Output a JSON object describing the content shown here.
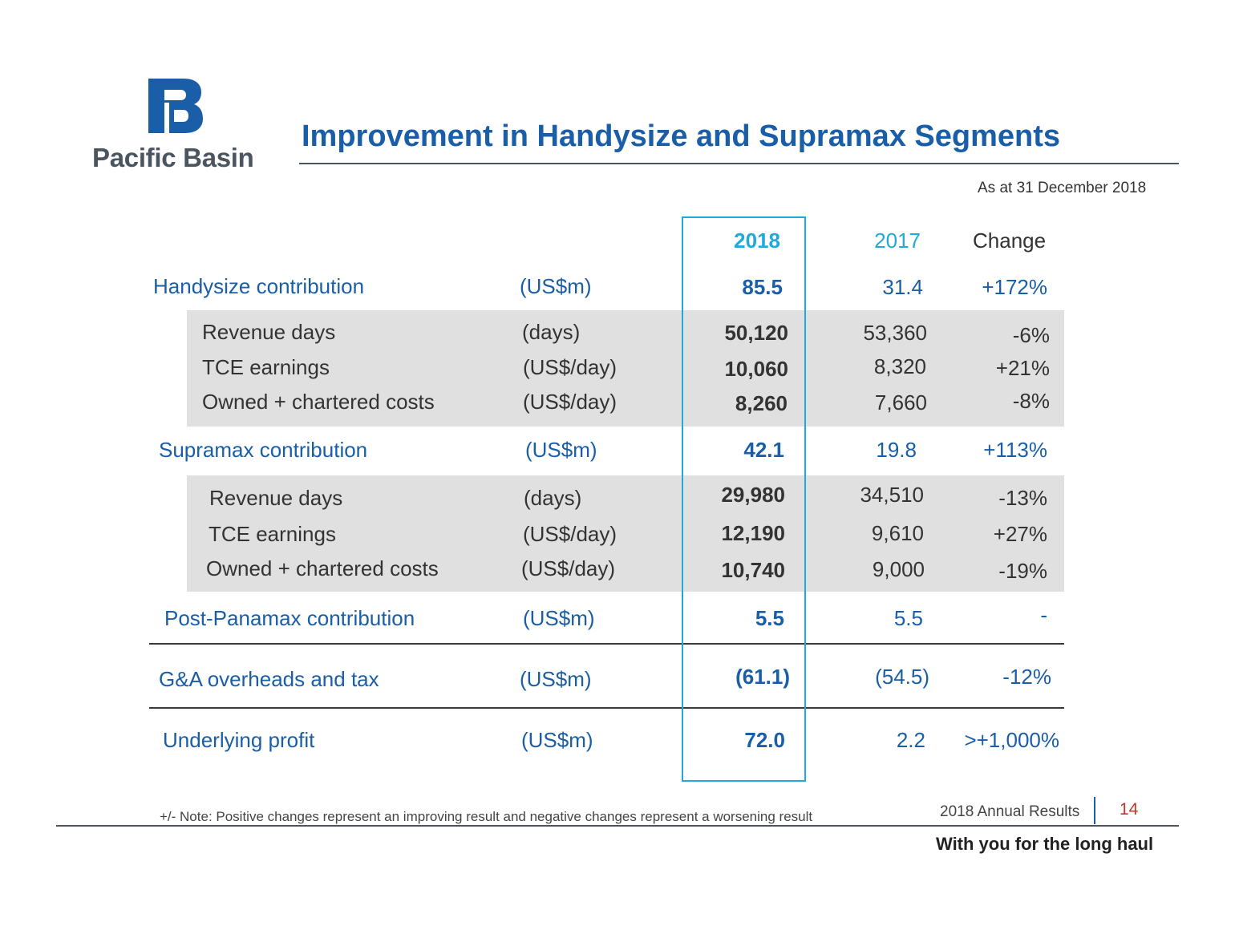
{
  "brand": {
    "name": "Pacific Basin",
    "color": "#1a5ea8"
  },
  "title": "Improvement in Handysize and Supramax Segments",
  "as_at": "As at 31 December 2018",
  "columns": {
    "y2018": "2018",
    "y2017": "2017",
    "change": "Change"
  },
  "rows": {
    "handy": {
      "label": "Handysize contribution",
      "unit": "(US$m)",
      "v2018": "85.5",
      "v2017": "31.4",
      "change": "+172%"
    },
    "handy_rev": {
      "label": "Revenue days",
      "unit": "(days)",
      "v2018": "50,120",
      "v2017": "53,360",
      "change": "-6%"
    },
    "handy_tce": {
      "label": "TCE earnings",
      "unit": "(US$/day)",
      "v2018": "10,060",
      "v2017": "8,320",
      "change": "+21%"
    },
    "handy_cost": {
      "label": "Owned + chartered costs",
      "unit": "(US$/day)",
      "v2018": "8,260",
      "v2017": "7,660",
      "change": "-8%"
    },
    "supra": {
      "label": "Supramax contribution",
      "unit": "(US$m)",
      "v2018": "42.1",
      "v2017": "19.8",
      "change": "+113%"
    },
    "supra_rev": {
      "label": "Revenue days",
      "unit": "(days)",
      "v2018": "29,980",
      "v2017": "34,510",
      "change": "-13%"
    },
    "supra_tce": {
      "label": "TCE earnings",
      "unit": "(US$/day)",
      "v2018": "12,190",
      "v2017": "9,610",
      "change": "+27%"
    },
    "supra_cost": {
      "label": "Owned + chartered costs",
      "unit": "(US$/day)",
      "v2018": "10,740",
      "v2017": "9,000",
      "change": "-19%"
    },
    "post": {
      "label": "Post-Panamax contribution",
      "unit": "(US$m)",
      "v2018": "5.5",
      "v2017": "5.5",
      "change": "-"
    },
    "ga": {
      "label": "G&A overheads and tax",
      "unit": "(US$m)",
      "v2018": "(61.1)",
      "v2017": "(54.5)",
      "change": "-12%"
    },
    "profit": {
      "label": "Underlying profit",
      "unit": "(US$m)",
      "v2018": "72.0",
      "v2017": "2.2",
      "change": ">+1,000%"
    }
  },
  "note": "+/- Note: Positive changes represent an improving result and negative changes represent a worsening result",
  "footer": {
    "report": "2018 Annual Results",
    "page": "14",
    "tagline": "With you for the long haul"
  }
}
